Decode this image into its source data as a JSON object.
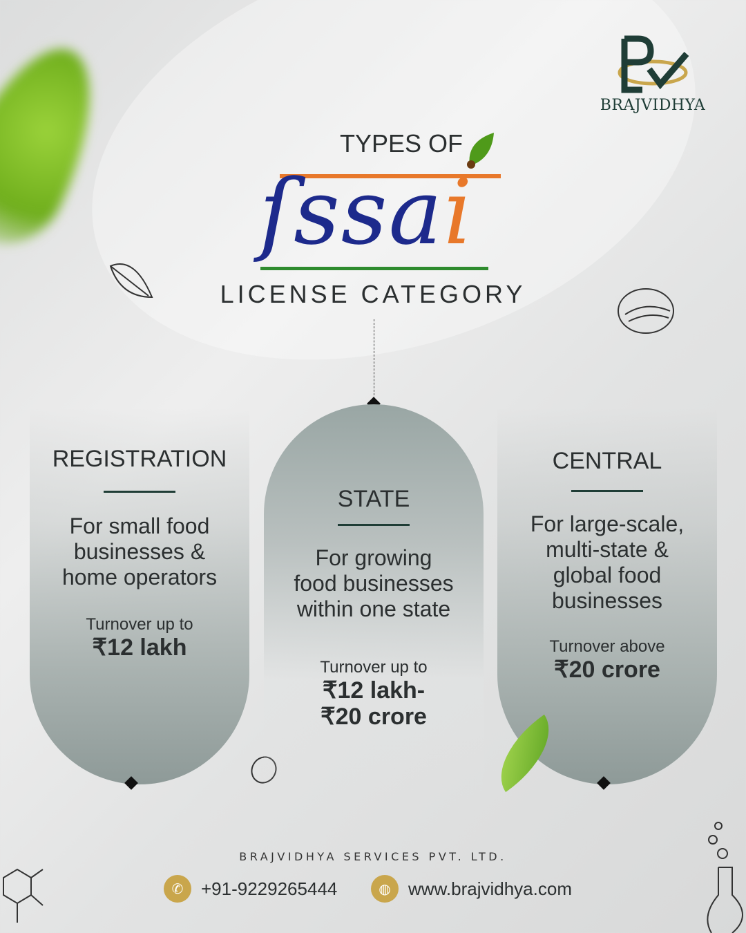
{
  "brand": {
    "logo_text": "BRAJVIDHYA"
  },
  "header": {
    "pre_title": "TYPES OF",
    "logo_word": "fssai",
    "subtitle": "LICENSE CATEGORY"
  },
  "categories": [
    {
      "title": "REGISTRATION",
      "description": [
        "For small food",
        "businesses &",
        "home operators"
      ],
      "turnover_label": "Turnover up to",
      "turnover_value": [
        "₹12 lakh"
      ]
    },
    {
      "title": "STATE",
      "description": [
        "For growing",
        "food businesses",
        "within one state"
      ],
      "turnover_label": "Turnover up to",
      "turnover_value": [
        "₹12 lakh-",
        "₹20 crore"
      ]
    },
    {
      "title": "CENTRAL",
      "description": [
        "For large-scale,",
        "multi-state &",
        "global food",
        "businesses"
      ],
      "turnover_label": "Turnover above",
      "turnover_value": [
        "₹20 crore"
      ]
    }
  ],
  "footer": {
    "company": "BRAJVIDHYA SERVICES PVT. LTD.",
    "phone": "+91-9229265444",
    "website": "www.brajvidhya.com"
  },
  "colors": {
    "accent_gold": "#c9a64c",
    "brand_green": "#1f3d36",
    "fssai_blue": "#1d2a8c",
    "fssai_orange": "#e8782a",
    "fssai_green": "#2e8b2e"
  },
  "icons": [
    "phone-icon",
    "globe-icon",
    "leaf-icon",
    "dessert-icon",
    "seed-icon",
    "molecule-icon",
    "flask-icon"
  ]
}
